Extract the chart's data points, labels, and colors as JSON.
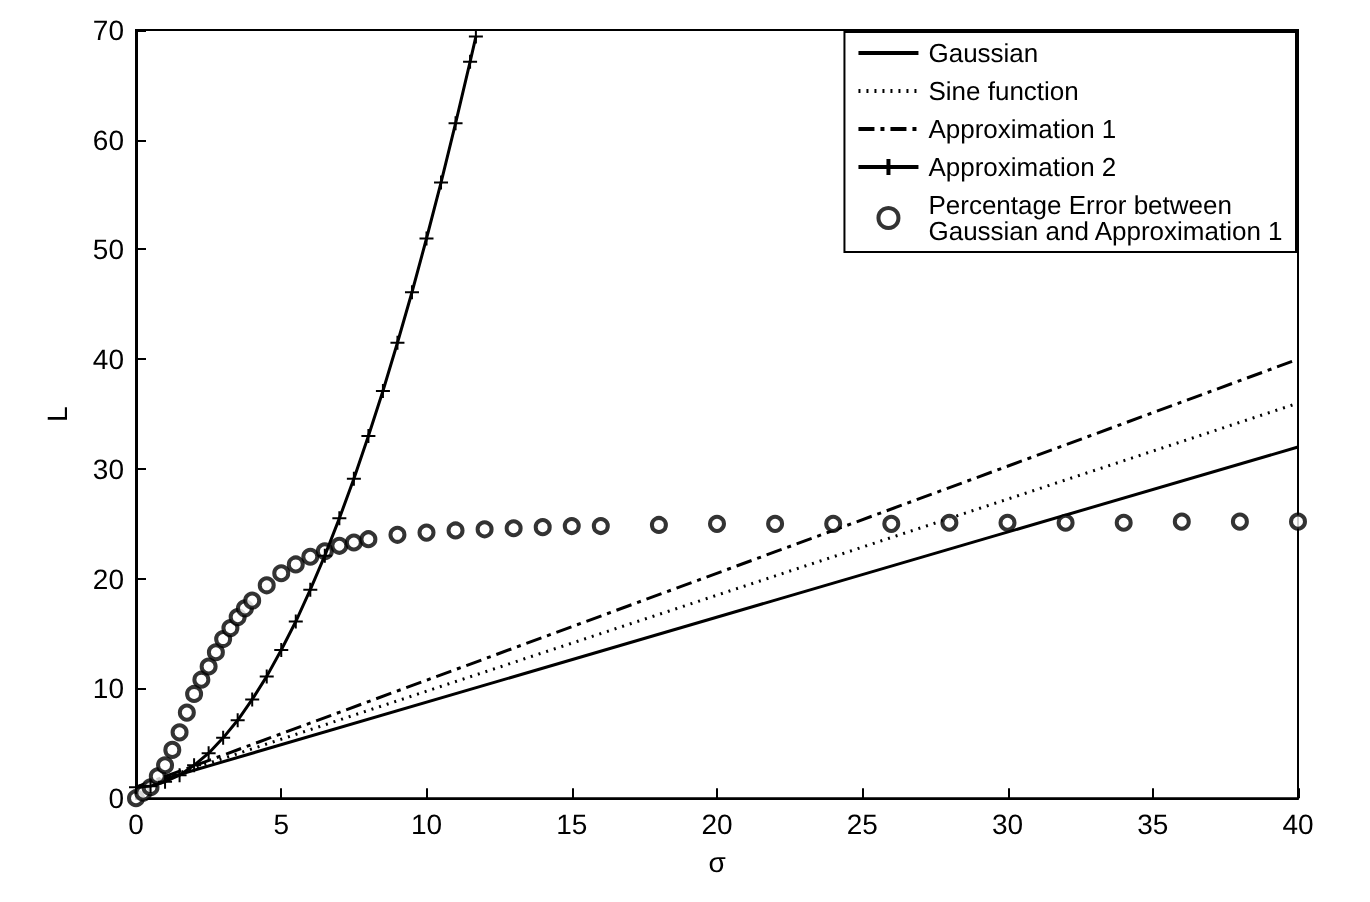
{
  "chart_data": {
    "type": "line",
    "xlabel": "σ",
    "ylabel": "L",
    "xlim": [
      0,
      40
    ],
    "ylim": [
      0,
      70
    ],
    "xticks": [
      0,
      5,
      10,
      15,
      20,
      25,
      30,
      35,
      40
    ],
    "yticks": [
      0,
      10,
      20,
      30,
      40,
      50,
      60,
      70
    ],
    "grid": false,
    "legend": "top right",
    "series": [
      {
        "name": "Gaussian",
        "color": "#000000",
        "line_style": "solid",
        "x": [
          0,
          40
        ],
        "values": [
          1,
          32
        ]
      },
      {
        "name": "Sine function",
        "color": "#000000",
        "line_style": "dotted",
        "x": [
          0,
          40
        ],
        "values": [
          1,
          36
        ]
      },
      {
        "name": "Approximation 1",
        "color": "#000000",
        "line_style": "dashed",
        "x": [
          0,
          40
        ],
        "values": [
          1,
          40
        ]
      },
      {
        "name": "Approximation 2",
        "color": "#000000",
        "line_style": "solid",
        "marker": "cross",
        "x": [
          0,
          0.5,
          1,
          1.5,
          2,
          2.5,
          3,
          3.5,
          4,
          4.5,
          5,
          5.5,
          6,
          6.5,
          7,
          7.5,
          8,
          8.5,
          9,
          9.5,
          10,
          10.5,
          11,
          11.5,
          11.7
        ],
        "values": [
          1,
          1.1,
          1.5,
          2.1,
          3,
          4.1,
          5.5,
          7.1,
          9,
          11.1,
          13.5,
          16.1,
          19,
          22.1,
          25.5,
          29.1,
          33,
          37.1,
          41.5,
          46.1,
          51,
          56.1,
          61.5,
          67.1,
          69.4
        ]
      },
      {
        "name": "Percentage Error between\nGaussian and Approximation 1",
        "type": "scatter",
        "color": "#000000",
        "marker": "circle",
        "x": [
          0,
          0.25,
          0.5,
          0.75,
          1,
          1.25,
          1.5,
          1.75,
          2,
          2.25,
          2.5,
          2.75,
          3,
          3.25,
          3.5,
          3.75,
          4,
          4.5,
          5,
          5.5,
          6,
          6.5,
          7,
          7.5,
          8,
          9,
          10,
          11,
          12,
          13,
          14,
          15,
          16,
          18,
          20,
          22,
          24,
          26,
          28,
          30,
          32,
          34,
          36,
          38,
          40
        ],
        "values": [
          0,
          0.5,
          1,
          2,
          3,
          4.4,
          6,
          7.8,
          9.5,
          10.8,
          12,
          13.3,
          14.5,
          15.5,
          16.5,
          17.3,
          18,
          19.4,
          20.5,
          21.3,
          22,
          22.5,
          23,
          23.3,
          23.6,
          24,
          24.2,
          24.4,
          24.5,
          24.6,
          24.7,
          24.8,
          24.8,
          24.9,
          25,
          25,
          25,
          25,
          25.1,
          25.1,
          25.1,
          25.1,
          25.2,
          25.2,
          25.2
        ]
      }
    ]
  }
}
